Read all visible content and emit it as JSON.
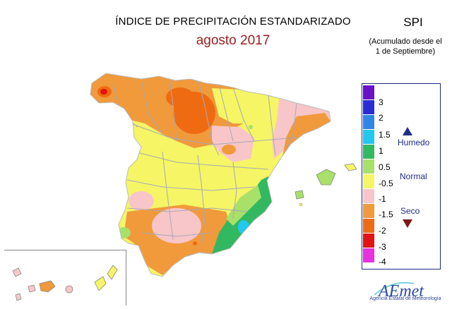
{
  "title": "ÍNDICE DE PRECIPITACIÓN ESTANDARIZADO",
  "subtitle": "agosto 2017",
  "spi": {
    "label": "SPI",
    "note_line1": "(Acumulado desde el",
    "note_line2": "1 de Septiembre)"
  },
  "legend": {
    "colors": [
      "#6a11c8",
      "#2b2bd6",
      "#2f86e8",
      "#21c8ef",
      "#32b861",
      "#a8e06a",
      "#f5f565",
      "#f8c6c8",
      "#f09a3c",
      "#ef6b12",
      "#e41212",
      "#ea2fdf"
    ],
    "ticks": [
      "3",
      "2",
      "1.5",
      "1",
      "0.5",
      "-0.5",
      "-1",
      "-1.5",
      "-2",
      "-3",
      "-4"
    ],
    "humid": "Humedo",
    "normal": "Normal",
    "dry": "Seco"
  },
  "logo": {
    "text": "AEmet",
    "subtext": "Agencia Estatal de Meteorología"
  }
}
